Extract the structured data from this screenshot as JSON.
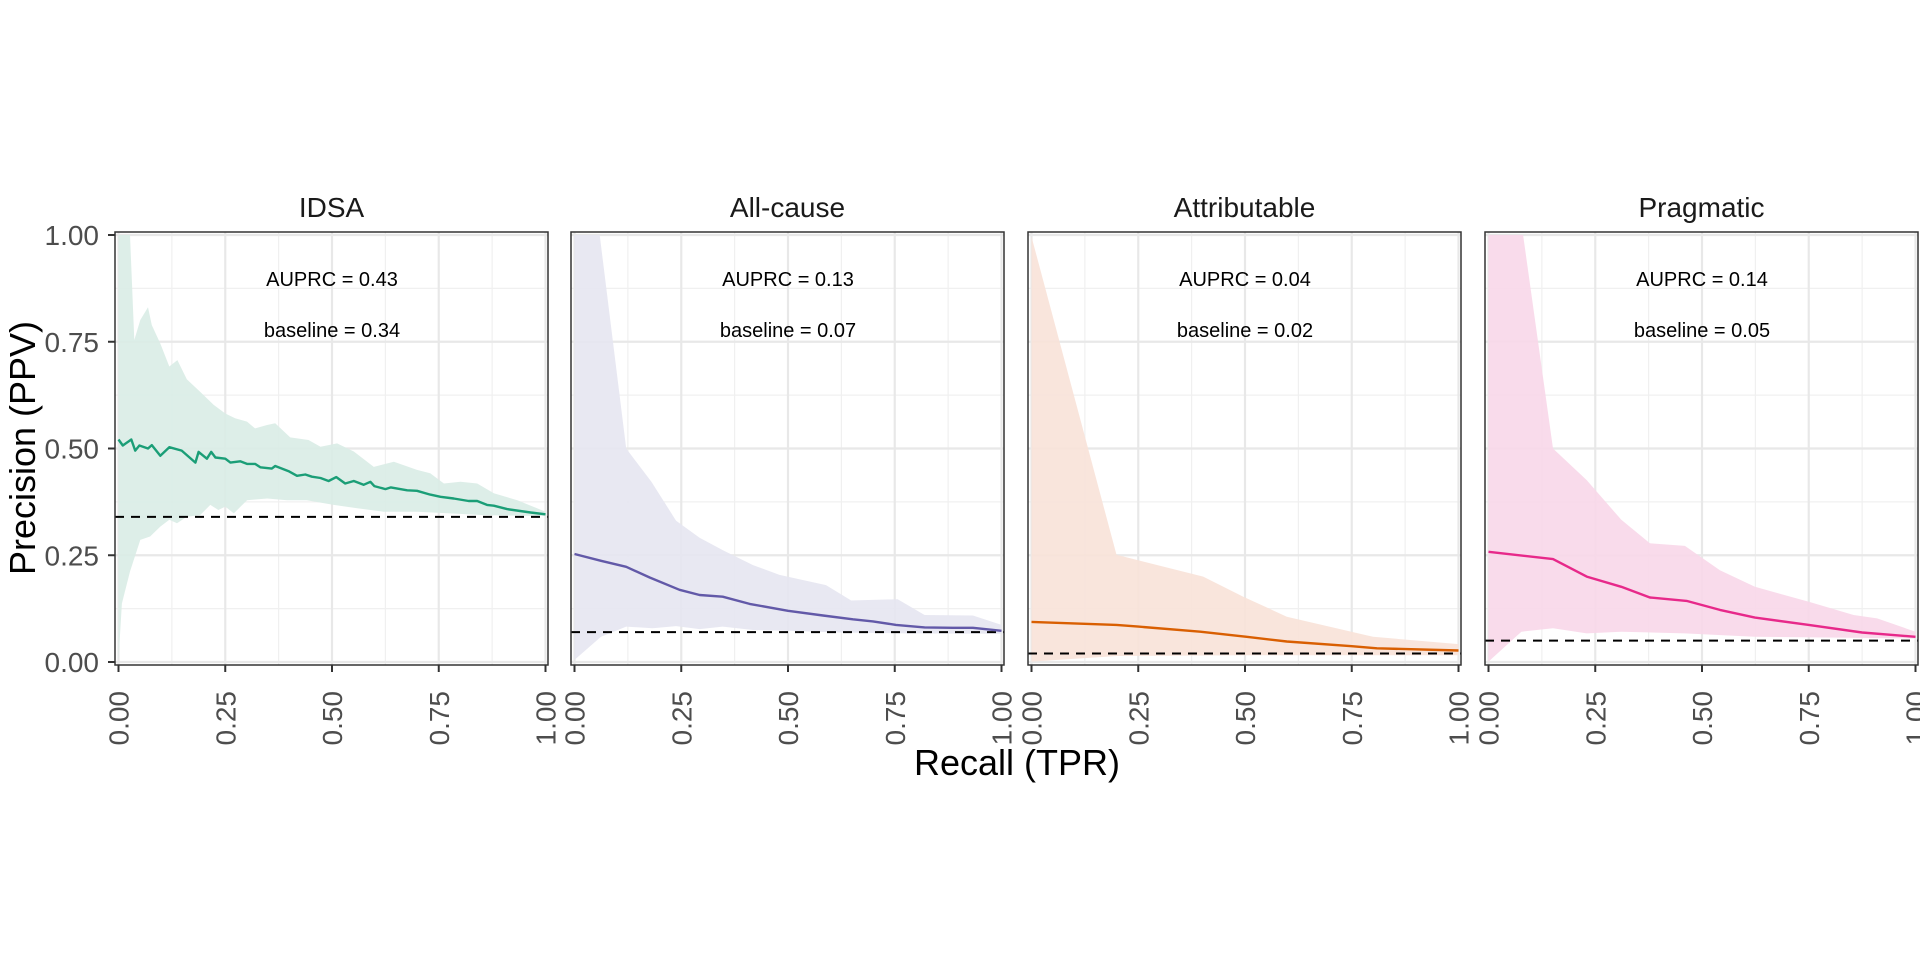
{
  "chart_data": {
    "type": "line",
    "xlabel": "Recall (TPR)",
    "ylabel": "Precision (PPV)",
    "xlim": [
      0,
      1
    ],
    "ylim": [
      0,
      1
    ],
    "x_ticks": [
      "0.00",
      "0.25",
      "0.50",
      "0.75",
      "1.00"
    ],
    "y_ticks": [
      "0.00",
      "0.25",
      "0.50",
      "0.75",
      "1.00"
    ],
    "x_tick_values": [
      0,
      0.25,
      0.5,
      0.75,
      1
    ],
    "y_tick_values": [
      0,
      0.25,
      0.5,
      0.75,
      1
    ],
    "grid": true,
    "panels": [
      {
        "title": "IDSA",
        "auprc_label": "AUPRC = 0.43",
        "baseline_label": "baseline = 0.34",
        "baseline": 0.34,
        "color": "#1b9e77",
        "band_color": "#d9ece5",
        "line": {
          "x": [
            0,
            0.01,
            0.03,
            0.039,
            0.049,
            0.069,
            0.078,
            0.098,
            0.119,
            0.148,
            0.18,
            0.1875,
            0.207,
            0.217,
            0.227,
            0.25,
            0.262,
            0.285,
            0.301,
            0.32,
            0.332,
            0.359,
            0.367,
            0.398,
            0.418,
            0.4375,
            0.453,
            0.473,
            0.492,
            0.51,
            0.531,
            0.551,
            0.574,
            0.59,
            0.599,
            0.625,
            0.638,
            0.676,
            0.699,
            0.73,
            0.754,
            0.785,
            0.82,
            0.84,
            0.863,
            0.879,
            0.91,
            0.965,
            1
          ],
          "y": [
            0.521,
            0.507,
            0.521,
            0.495,
            0.507,
            0.5,
            0.508,
            0.483,
            0.503,
            0.495,
            0.467,
            0.492,
            0.476,
            0.492,
            0.479,
            0.476,
            0.467,
            0.47,
            0.464,
            0.464,
            0.456,
            0.453,
            0.459,
            0.447,
            0.436,
            0.439,
            0.434,
            0.431,
            0.424,
            0.433,
            0.418,
            0.424,
            0.415,
            0.422,
            0.412,
            0.405,
            0.409,
            0.402,
            0.401,
            0.392,
            0.387,
            0.383,
            0.377,
            0.377,
            0.368,
            0.366,
            0.358,
            0.35,
            0.346
          ]
        },
        "upper": {
          "x": [
            0,
            0.027,
            0.037,
            0.051,
            0.069,
            0.078,
            0.098,
            0.119,
            0.138,
            0.16,
            0.191,
            0.223,
            0.25,
            0.273,
            0.301,
            0.32,
            0.348,
            0.367,
            0.402,
            0.445,
            0.473,
            0.512,
            0.551,
            0.598,
            0.645,
            0.699,
            0.73,
            0.762,
            0.801,
            0.84,
            0.879,
            0.934,
            1
          ],
          "y": [
            1,
            1,
            0.754,
            0.801,
            0.831,
            0.789,
            0.746,
            0.692,
            0.707,
            0.662,
            0.633,
            0.602,
            0.582,
            0.571,
            0.563,
            0.547,
            0.555,
            0.559,
            0.526,
            0.52,
            0.504,
            0.512,
            0.493,
            0.457,
            0.469,
            0.45,
            0.442,
            0.418,
            0.422,
            0.418,
            0.395,
            0.379,
            0.352
          ]
        },
        "lower": {
          "x": [
            0,
            0.008,
            0.027,
            0.051,
            0.074,
            0.098,
            0.119,
            0.137,
            0.16,
            0.191,
            0.215,
            0.234,
            0.25,
            0.27,
            0.301,
            0.348,
            0.395,
            0.441,
            0.504,
            0.559,
            0.621,
            0.699,
            0.777,
            0.855,
            1
          ],
          "y": [
            0.005,
            0.137,
            0.212,
            0.286,
            0.294,
            0.317,
            0.333,
            0.325,
            0.34,
            0.344,
            0.368,
            0.356,
            0.364,
            0.348,
            0.379,
            0.383,
            0.379,
            0.379,
            0.368,
            0.36,
            0.352,
            0.352,
            0.348,
            0.344,
            0.342
          ]
        }
      },
      {
        "title": "All-cause",
        "auprc_label": "AUPRC = 0.13",
        "baseline_label": "baseline = 0.07",
        "baseline": 0.07,
        "color": "#6259a8",
        "band_color": "#e6e5f1",
        "line": {
          "x": [
            0,
            0.062,
            0.121,
            0.176,
            0.246,
            0.293,
            0.347,
            0.41,
            0.5,
            0.582,
            0.652,
            0.699,
            0.753,
            0.82,
            0.886,
            0.933,
            1
          ],
          "y": [
            0.253,
            0.237,
            0.223,
            0.198,
            0.169,
            0.157,
            0.153,
            0.136,
            0.12,
            0.109,
            0.1,
            0.095,
            0.087,
            0.081,
            0.08,
            0.08,
            0.073
          ]
        },
        "upper": {
          "x": [
            0,
            0.059,
            0.121,
            0.18,
            0.238,
            0.293,
            0.347,
            0.418,
            0.48,
            0.589,
            0.648,
            0.757,
            0.82,
            0.933,
            1
          ],
          "y": [
            1,
            1,
            0.5,
            0.422,
            0.331,
            0.291,
            0.262,
            0.227,
            0.204,
            0.18,
            0.144,
            0.147,
            0.11,
            0.109,
            0.087
          ]
        },
        "lower": {
          "x": [
            0,
            0.062,
            0.121,
            0.183,
            0.238,
            0.293,
            0.347,
            0.418,
            0.5,
            0.62,
            0.777,
            1
          ],
          "y": [
            0.005,
            0.059,
            0.083,
            0.079,
            0.084,
            0.077,
            0.083,
            0.075,
            0.073,
            0.069,
            0.067,
            0.066
          ]
        }
      },
      {
        "title": "Attributable",
        "auprc_label": "AUPRC = 0.04",
        "baseline_label": "baseline = 0.02",
        "baseline": 0.02,
        "color": "#d95f02",
        "band_color": "#f8e2d8",
        "line": {
          "x": [
            0,
            0.199,
            0.25,
            0.395,
            0.504,
            0.598,
            0.75,
            0.809,
            1
          ],
          "y": [
            0.094,
            0.087,
            0.083,
            0.071,
            0.059,
            0.048,
            0.037,
            0.032,
            0.027
          ]
        },
        "upper": {
          "x": [
            0,
            0.199,
            0.402,
            0.496,
            0.598,
            0.8,
            1
          ],
          "y": [
            0.996,
            0.251,
            0.2,
            0.153,
            0.106,
            0.059,
            0.042
          ]
        },
        "lower": {
          "x": [
            0,
            0.2,
            0.5,
            1
          ],
          "y": [
            0.001,
            0.014,
            0.016,
            0.016
          ]
        }
      },
      {
        "title": "Pragmatic",
        "auprc_label": "AUPRC = 0.14",
        "baseline_label": "baseline = 0.05",
        "baseline": 0.05,
        "color": "#e7298a",
        "band_color": "#f8d7e9",
        "line": {
          "x": [
            0,
            0.151,
            0.23,
            0.311,
            0.378,
            0.464,
            0.542,
            0.624,
            0.75,
            0.875,
            1
          ],
          "y": [
            0.258,
            0.241,
            0.2,
            0.176,
            0.151,
            0.143,
            0.122,
            0.104,
            0.087,
            0.069,
            0.059
          ]
        },
        "upper": {
          "x": [
            0,
            0.081,
            0.151,
            0.23,
            0.311,
            0.378,
            0.46,
            0.542,
            0.624,
            0.75,
            0.855,
            0.91,
            1
          ],
          "y": [
            1,
            1,
            0.5,
            0.426,
            0.333,
            0.278,
            0.272,
            0.215,
            0.176,
            0.141,
            0.11,
            0.102,
            0.071
          ]
        },
        "lower": {
          "x": [
            0,
            0.077,
            0.151,
            0.23,
            0.311,
            0.46,
            0.624,
            1
          ],
          "y": [
            0.001,
            0.071,
            0.079,
            0.067,
            0.071,
            0.067,
            0.059,
            0.055
          ]
        }
      }
    ]
  }
}
